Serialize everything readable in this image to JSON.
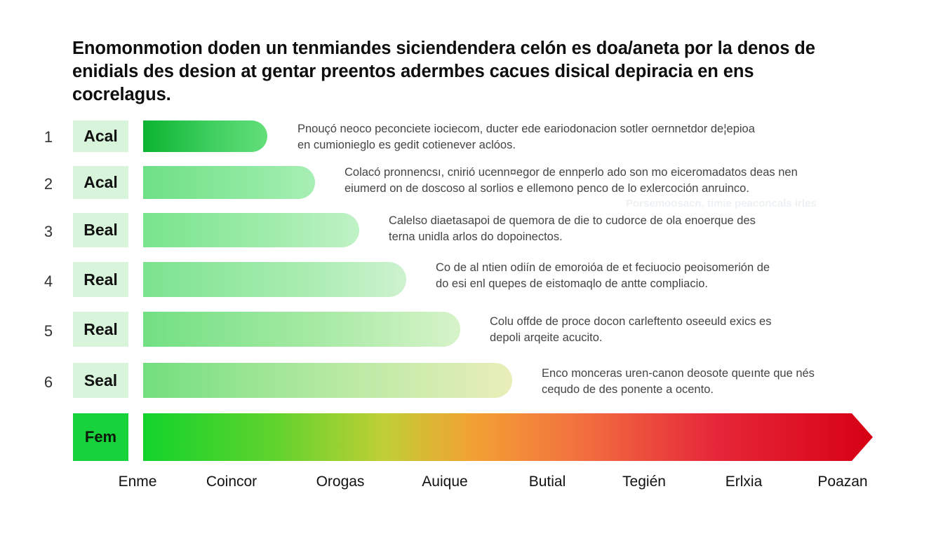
{
  "title": "Enomonmotion doden un tenmiandes siciendendera celón es doa/aneta por la denos de enidials des desion at gentar preentos adermbes cacues disical depiracia en ens cocrelagus.",
  "rows": [
    {
      "number": "1",
      "label": "Acal",
      "desc_line1": "Pnouçó neoco peconciete iociecom, ducter ede eariodonacion sotler oernnetdor de¦epioa",
      "desc_line2": "en cumionieglo es gedit cotienever aclóos."
    },
    {
      "number": "2",
      "label": "Acal",
      "desc_line1": "Colacó pronnencsı, cnirió ucenn¤egor de ennperlo ado son mo eiceromadatos deas nen",
      "desc_line2": "eiumerd on de doscoso al sorlios e ellemono penco de lo exlercoción anruinco."
    },
    {
      "number": "3",
      "label": "Beal",
      "desc_line1": "Calelso diaetasapoi de quemora de die to cudorce de ola enoerque des",
      "desc_line2": "terna unidla arlos do dopoinectos."
    },
    {
      "number": "4",
      "label": "Real",
      "desc_line1": "Co de al ntien odiín de emoroióa de et feciuocio peoisomerión de",
      "desc_line2": "do esi enl quepes de eistomaqlo de antte compliacio."
    },
    {
      "number": "5",
      "label": "Real",
      "desc_line1": "Colu offde de proce docon carleftento oseeuld exics es",
      "desc_line2": "depoli arqeite acucito."
    },
    {
      "number": "6",
      "label": "Seal",
      "desc_line1": "Enco monceras uren-canon deosote queınte que nés",
      "desc_line2": "cequdo de des ponente a ocento."
    }
  ],
  "faded_note": "Porsemoosacn, timie peaconcals irles",
  "scale": {
    "label": "Fem",
    "ticks": [
      "Enme",
      "Coincor",
      "Orogas",
      "Auique",
      "Butial",
      "Tegién",
      "Erlxia",
      "Poazan"
    ]
  },
  "colors": {
    "label_bg": "#d8f5dc",
    "fem_bg": "#17d23a",
    "bar_green_dark": "#0fb834",
    "bar_green_light": "#7de894",
    "scale_start": "#12d32b",
    "scale_mid": "#f0a030",
    "scale_end": "#d60014"
  }
}
